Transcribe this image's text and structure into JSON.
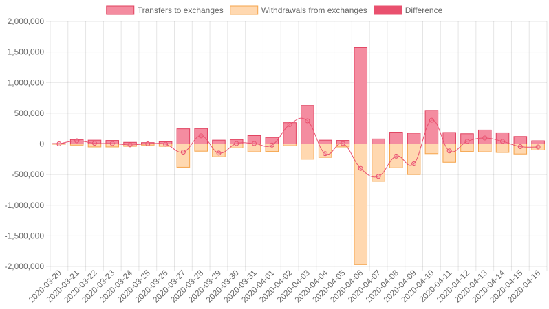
{
  "chart_data": {
    "type": "bar",
    "categories": [
      "2020-03-20",
      "2020-03-21",
      "2020-03-22",
      "2020-03-23",
      "2020-03-24",
      "2020-03-25",
      "2020-03-26",
      "2020-03-27",
      "2020-03-28",
      "2020-03-29",
      "2020-03-30",
      "2020-03-31",
      "2020-04-01",
      "2020-04-02",
      "2020-04-03",
      "2020-04-04",
      "2020-04-05",
      "2020-04-06",
      "2020-04-07",
      "2020-04-08",
      "2020-04-09",
      "2020-04-10",
      "2020-04-11",
      "2020-04-12",
      "2020-04-13",
      "2020-04-14",
      "2020-04-15",
      "2020-04-16"
    ],
    "series": [
      {
        "name": "Transfers to exchanges",
        "kind": "bar",
        "color": "#f48ca0",
        "border": "#e0405e",
        "values": [
          5000,
          70000,
          60000,
          55000,
          25000,
          20000,
          35000,
          245000,
          250000,
          60000,
          70000,
          135000,
          105000,
          345000,
          625000,
          60000,
          55000,
          1570000,
          80000,
          190000,
          175000,
          545000,
          185000,
          165000,
          225000,
          180000,
          120000,
          50000
        ]
      },
      {
        "name": "Withdrawals from exchanges",
        "kind": "bar",
        "color": "#ffd8b0",
        "border": "#f5a34a",
        "values": [
          -5000,
          -20000,
          -50000,
          -50000,
          -40000,
          -20000,
          -40000,
          -380000,
          -120000,
          -210000,
          -65000,
          -130000,
          -125000,
          -30000,
          -250000,
          -220000,
          -50000,
          -1970000,
          -610000,
          -390000,
          -500000,
          -160000,
          -300000,
          -125000,
          -130000,
          -140000,
          -165000,
          -100000
        ]
      },
      {
        "name": "Difference",
        "kind": "line",
        "color": "#e9506e",
        "values": [
          0,
          50000,
          10000,
          5000,
          -15000,
          0,
          -5000,
          -135000,
          130000,
          -150000,
          5000,
          5000,
          -20000,
          315000,
          375000,
          -160000,
          5000,
          -400000,
          -530000,
          -200000,
          -325000,
          385000,
          -115000,
          40000,
          95000,
          40000,
          -45000,
          -50000
        ]
      }
    ],
    "ylim": [
      -2000000,
      2000000
    ],
    "yticks": [
      2000000,
      1500000,
      1000000,
      500000,
      0,
      -500000,
      -1000000,
      -1500000,
      -2000000
    ],
    "ytick_labels": [
      "2,000,000",
      "1,500,000",
      "1,000,000",
      "500,000",
      "0",
      "-500,000",
      "-1,000,000",
      "-1,500,000",
      "-2,000,000"
    ],
    "grid": true,
    "legend_position": "top",
    "stacked": true
  }
}
